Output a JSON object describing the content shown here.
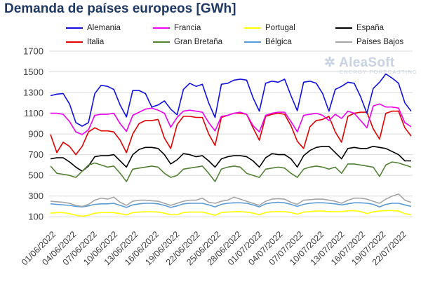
{
  "chart_data": {
    "type": "line",
    "title": "Demanda de países europeos [GWh]",
    "ylim": [
      0,
      1700
    ],
    "yticks": [
      100,
      300,
      500,
      700,
      900,
      1100,
      1300,
      1500,
      1700
    ],
    "grid": true,
    "legend_position": "top",
    "xticks": [
      "01/06/2022",
      "04/06/2022",
      "07/06/2022",
      "10/06/2022",
      "13/06/2022",
      "16/06/2022",
      "19/06/2022",
      "22/06/2022",
      "25/06/2022",
      "28/06/2022",
      "01/07/2022",
      "04/07/2022",
      "07/07/2022",
      "10/07/2022",
      "13/07/2022",
      "16/07/2022",
      "19/07/2022",
      "22/07/2022"
    ],
    "x_start": "01/06/2022",
    "x_end": "24/07/2022",
    "series": [
      {
        "name": "Alemania",
        "color": "#1010E0",
        "values": [
          1270,
          1285,
          1290,
          1190,
          1010,
          975,
          1010,
          1290,
          1370,
          1360,
          1330,
          1180,
          1065,
          1320,
          1320,
          1290,
          1160,
          1180,
          1220,
          1140,
          1085,
          1330,
          1390,
          1360,
          1380,
          1200,
          1060,
          1380,
          1390,
          1420,
          1430,
          1420,
          1250,
          1120,
          1390,
          1410,
          1400,
          1430,
          1270,
          1125,
          1400,
          1410,
          1390,
          1290,
          1120,
          1330,
          1360,
          1400,
          1390,
          1260,
          1100,
          1340,
          1400,
          1480,
          1440,
          1390,
          1200,
          1120
        ]
      },
      {
        "name": "Francia",
        "color": "#EE00EE",
        "values": [
          1100,
          1100,
          1090,
          1020,
          920,
          895,
          940,
          1080,
          1090,
          1090,
          1100,
          1000,
          925,
          1080,
          1110,
          1140,
          1150,
          1130,
          1100,
          965,
          1060,
          1120,
          1130,
          1120,
          1110,
          1010,
          930,
          1070,
          1080,
          1100,
          1110,
          1090,
          980,
          920,
          1080,
          1100,
          1110,
          1110,
          1020,
          920,
          1080,
          1090,
          1100,
          1080,
          1030,
          1090,
          1050,
          1120,
          1100,
          1030,
          960,
          1170,
          1190,
          1160,
          1160,
          1150,
          1010,
          970
        ]
      },
      {
        "name": "Portugal",
        "color": "#FFFF00",
        "values": [
          135,
          140,
          140,
          130,
          115,
          105,
          115,
          135,
          140,
          140,
          140,
          130,
          118,
          140,
          145,
          148,
          148,
          145,
          135,
          120,
          120,
          140,
          145,
          145,
          145,
          130,
          115,
          140,
          145,
          148,
          150,
          145,
          135,
          120,
          140,
          148,
          150,
          150,
          140,
          125,
          145,
          150,
          155,
          155,
          150,
          150,
          150,
          158,
          160,
          150,
          130,
          148,
          155,
          160,
          160,
          155,
          130,
          120
        ]
      },
      {
        "name": "España",
        "color": "#000000",
        "values": [
          660,
          670,
          670,
          630,
          580,
          540,
          590,
          680,
          690,
          690,
          700,
          640,
          580,
          700,
          750,
          770,
          770,
          760,
          700,
          610,
          650,
          710,
          700,
          680,
          690,
          640,
          580,
          660,
          680,
          690,
          690,
          680,
          640,
          580,
          670,
          710,
          700,
          700,
          660,
          580,
          690,
          740,
          770,
          780,
          780,
          720,
          660,
          760,
          770,
          760,
          760,
          780,
          770,
          760,
          730,
          700,
          640,
          640
        ]
      },
      {
        "name": "Italia",
        "color": "#E00000",
        "values": [
          895,
          720,
          820,
          780,
          700,
          780,
          920,
          960,
          930,
          930,
          920,
          840,
          720,
          900,
          1000,
          1030,
          1030,
          1040,
          860,
          760,
          990,
          1070,
          1070,
          1060,
          1060,
          900,
          790,
          1060,
          1080,
          1100,
          1100,
          1090,
          960,
          840,
          1070,
          1090,
          1100,
          1090,
          980,
          830,
          760,
          970,
          1030,
          1040,
          1070,
          920,
          820,
          1070,
          1100,
          1110,
          1110,
          950,
          850,
          1100,
          1120,
          1120,
          960,
          880
        ]
      },
      {
        "name": "Gran Bretaña",
        "color": "#548235",
        "values": [
          590,
          520,
          510,
          500,
          480,
          540,
          600,
          620,
          600,
          580,
          590,
          520,
          440,
          560,
          570,
          580,
          590,
          580,
          520,
          480,
          500,
          560,
          570,
          580,
          590,
          520,
          440,
          560,
          580,
          590,
          580,
          520,
          500,
          480,
          560,
          570,
          580,
          570,
          520,
          480,
          560,
          580,
          590,
          580,
          560,
          580,
          520,
          610,
          610,
          600,
          590,
          580,
          490,
          600,
          630,
          620,
          600,
          580
        ]
      },
      {
        "name": "Bélgica",
        "color": "#5B9BD5",
        "values": [
          225,
          220,
          215,
          210,
          200,
          195,
          205,
          220,
          225,
          225,
          230,
          210,
          190,
          215,
          225,
          230,
          230,
          225,
          210,
          190,
          205,
          225,
          230,
          230,
          230,
          215,
          195,
          220,
          230,
          235,
          235,
          230,
          215,
          195,
          225,
          235,
          240,
          235,
          220,
          200,
          220,
          230,
          235,
          235,
          230,
          225,
          215,
          225,
          235,
          235,
          230,
          220,
          195,
          220,
          230,
          230,
          215,
          200
        ]
      },
      {
        "name": "Países Bajos",
        "color": "#A5A5A5",
        "values": [
          250,
          245,
          240,
          230,
          210,
          200,
          220,
          260,
          280,
          270,
          290,
          240,
          210,
          250,
          260,
          260,
          255,
          250,
          230,
          210,
          230,
          250,
          260,
          260,
          280,
          240,
          230,
          250,
          260,
          290,
          270,
          250,
          230,
          210,
          250,
          270,
          275,
          270,
          240,
          220,
          260,
          265,
          270,
          270,
          260,
          250,
          230,
          260,
          280,
          280,
          270,
          250,
          230,
          270,
          300,
          320,
          260,
          240
        ]
      }
    ]
  }
}
